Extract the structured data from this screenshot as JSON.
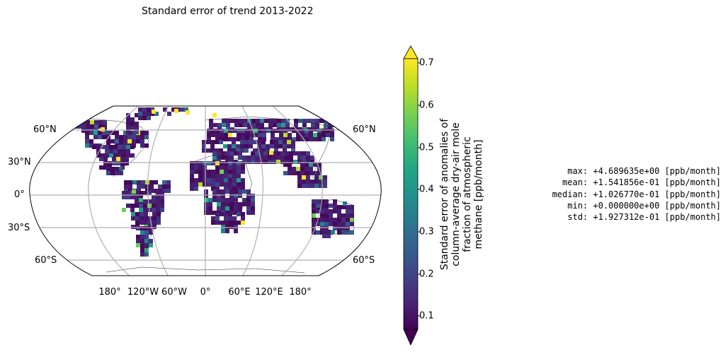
{
  "title": "Standard error of trend 2013-2022",
  "map": {
    "projection": "Robinson",
    "lat_labels_left": [
      "60°N",
      "30°N",
      "0°",
      "30°S",
      "60°S"
    ],
    "lat_labels_right": [
      "60°N",
      "60°S"
    ],
    "lon_labels": [
      "180°",
      "120°W",
      "60°W",
      "0°",
      "60°E",
      "120°E",
      "180°"
    ]
  },
  "colorbar": {
    "colormap": "viridis",
    "min": 0.05,
    "max": 0.72,
    "extend": "both",
    "ticks": [
      "0.1",
      "0.2",
      "0.3",
      "0.4",
      "0.5",
      "0.6",
      "0.7"
    ],
    "label_lines": [
      "Standard error of anomalies of",
      "column-average dry-air mole",
      "fraction of atmospheric",
      "methane [ppb/month]"
    ]
  },
  "stats": [
    "max: +4.689635e+00 [ppb/month]",
    "mean: +1.541856e-01 [ppb/month]",
    "median: +1.026770e-01 [ppb/month]",
    "min: +0.000000e+00 [ppb/month]",
    "std: +1.927312e-01 [ppb/month]"
  ]
}
